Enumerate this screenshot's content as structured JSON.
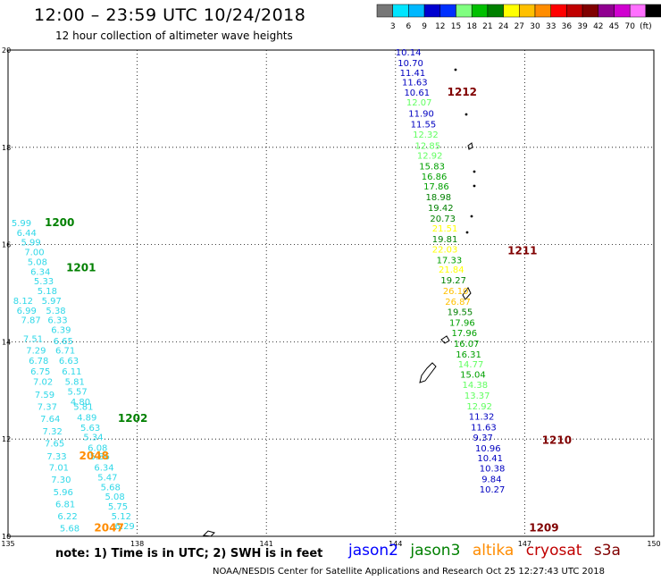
{
  "title": "12:00 – 23:59 UTC 10/24/2018",
  "subtitle": "12 hour collection of altimeter wave heights",
  "legend": {
    "colors": [
      "#777777",
      "#00e5ff",
      "#00b8ff",
      "#0000d0",
      "#0030ff",
      "#80ff80",
      "#00c000",
      "#008000",
      "#ffff00",
      "#ffc000",
      "#ff8c00",
      "#ff0000",
      "#c00000",
      "#800000",
      "#900090",
      "#d000d0",
      "#ff70ff",
      "#000000"
    ],
    "labels": [
      "3",
      "6",
      "9",
      "12",
      "15",
      "18",
      "21",
      "24",
      "27",
      "30",
      "33",
      "36",
      "39",
      "42",
      "45",
      "70",
      "(ft)"
    ]
  },
  "axes": {
    "lon_ticks": [
      "135",
      "138",
      "141",
      "144",
      "147",
      "150"
    ],
    "lat_ticks": [
      "20",
      "18",
      "16",
      "14",
      "12",
      "10"
    ]
  },
  "points": [
    {
      "v": "10.14",
      "lon": 144.0,
      "lat": 19.89,
      "c": "#0000c0"
    },
    {
      "v": "10.70",
      "lon": 144.05,
      "lat": 19.67,
      "c": "#0000c0"
    },
    {
      "v": "11.41",
      "lon": 144.1,
      "lat": 19.47,
      "c": "#0000c0"
    },
    {
      "v": "11.63",
      "lon": 144.15,
      "lat": 19.27,
      "c": "#0000c0"
    },
    {
      "v": "10.61",
      "lon": 144.2,
      "lat": 19.06,
      "c": "#0000c0"
    },
    {
      "v": "12.07",
      "lon": 144.25,
      "lat": 18.86,
      "c": "#60ff60"
    },
    {
      "v": "11.90",
      "lon": 144.3,
      "lat": 18.63,
      "c": "#0000c0"
    },
    {
      "v": "11.55",
      "lon": 144.35,
      "lat": 18.41,
      "c": "#0000c0"
    },
    {
      "v": "12.32",
      "lon": 144.4,
      "lat": 18.2,
      "c": "#60ff60"
    },
    {
      "v": "12.85",
      "lon": 144.45,
      "lat": 17.97,
      "c": "#60ff60"
    },
    {
      "v": "12.92",
      "lon": 144.5,
      "lat": 17.77,
      "c": "#60ff60"
    },
    {
      "v": "15.83",
      "lon": 144.55,
      "lat": 17.55,
      "c": "#00a000"
    },
    {
      "v": "16.86",
      "lon": 144.6,
      "lat": 17.33,
      "c": "#00a000"
    },
    {
      "v": "17.86",
      "lon": 144.65,
      "lat": 17.13,
      "c": "#00a000"
    },
    {
      "v": "18.98",
      "lon": 144.7,
      "lat": 16.91,
      "c": "#008000"
    },
    {
      "v": "19.42",
      "lon": 144.75,
      "lat": 16.69,
      "c": "#008000"
    },
    {
      "v": "20.73",
      "lon": 144.8,
      "lat": 16.47,
      "c": "#008000"
    },
    {
      "v": "21.51",
      "lon": 144.85,
      "lat": 16.27,
      "c": "#ffff00"
    },
    {
      "v": "19.81",
      "lon": 144.85,
      "lat": 16.05,
      "c": "#008000"
    },
    {
      "v": "22.03",
      "lon": 144.85,
      "lat": 15.84,
      "c": "#ffff00"
    },
    {
      "v": "17.33",
      "lon": 144.95,
      "lat": 15.62,
      "c": "#00a000"
    },
    {
      "v": "21.84",
      "lon": 145.0,
      "lat": 15.42,
      "c": "#ffff00"
    },
    {
      "v": "19.27",
      "lon": 145.05,
      "lat": 15.2,
      "c": "#008000"
    },
    {
      "v": "26.10",
      "lon": 145.1,
      "lat": 14.98,
      "c": "#ffc000"
    },
    {
      "v": "26.87",
      "lon": 145.15,
      "lat": 14.76,
      "c": "#ffc000"
    },
    {
      "v": "19.55",
      "lon": 145.2,
      "lat": 14.55,
      "c": "#008000"
    },
    {
      "v": "17.96",
      "lon": 145.25,
      "lat": 14.33,
      "c": "#00a000"
    },
    {
      "v": "17.96",
      "lon": 145.3,
      "lat": 14.12,
      "c": "#00a000"
    },
    {
      "v": "16.07",
      "lon": 145.35,
      "lat": 13.9,
      "c": "#00a000"
    },
    {
      "v": "16.31",
      "lon": 145.4,
      "lat": 13.68,
      "c": "#00a000"
    },
    {
      "v": "14.77",
      "lon": 145.45,
      "lat": 13.47,
      "c": "#60ff60"
    },
    {
      "v": "15.04",
      "lon": 145.5,
      "lat": 13.26,
      "c": "#00a000"
    },
    {
      "v": "14.38",
      "lon": 145.55,
      "lat": 13.05,
      "c": "#60ff60"
    },
    {
      "v": "13.37",
      "lon": 145.6,
      "lat": 12.83,
      "c": "#60ff60"
    },
    {
      "v": "12.92",
      "lon": 145.65,
      "lat": 12.61,
      "c": "#60ff60"
    },
    {
      "v": "11.32",
      "lon": 145.7,
      "lat": 12.4,
      "c": "#0000c0"
    },
    {
      "v": "11.63",
      "lon": 145.75,
      "lat": 12.18,
      "c": "#0000c0"
    },
    {
      "v": "9.37",
      "lon": 145.8,
      "lat": 11.97,
      "c": "#0000c0"
    },
    {
      "v": "10.96",
      "lon": 145.85,
      "lat": 11.75,
      "c": "#0000c0"
    },
    {
      "v": "10.41",
      "lon": 145.9,
      "lat": 11.54,
      "c": "#0000c0"
    },
    {
      "v": "10.38",
      "lon": 145.95,
      "lat": 11.33,
      "c": "#0000c0"
    },
    {
      "v": "9.84",
      "lon": 146.0,
      "lat": 11.11,
      "c": "#0000c0"
    },
    {
      "v": "10.27",
      "lon": 145.95,
      "lat": 10.9,
      "c": "#0000c0"
    },
    {
      "v": "5.99",
      "lon": 135.08,
      "lat": 16.38,
      "c": "#30d8e8"
    },
    {
      "v": "6.44",
      "lon": 135.2,
      "lat": 16.18,
      "c": "#30d8e8"
    },
    {
      "v": "5.99",
      "lon": 135.3,
      "lat": 15.98,
      "c": "#30d8e8"
    },
    {
      "v": "7.00",
      "lon": 135.38,
      "lat": 15.78,
      "c": "#30d8e8"
    },
    {
      "v": "5.08",
      "lon": 135.45,
      "lat": 15.58,
      "c": "#30d8e8"
    },
    {
      "v": "6.34",
      "lon": 135.52,
      "lat": 15.38,
      "c": "#30d8e8"
    },
    {
      "v": "5.33",
      "lon": 135.6,
      "lat": 15.18,
      "c": "#30d8e8"
    },
    {
      "v": "5.18",
      "lon": 135.68,
      "lat": 14.98,
      "c": "#30d8e8"
    },
    {
      "v": "8.12",
      "lon": 135.12,
      "lat": 14.78,
      "c": "#30d8e8"
    },
    {
      "v": "5.97",
      "lon": 135.78,
      "lat": 14.78,
      "c": "#30d8e8"
    },
    {
      "v": "6.99",
      "lon": 135.2,
      "lat": 14.58,
      "c": "#30d8e8"
    },
    {
      "v": "5.38",
      "lon": 135.88,
      "lat": 14.58,
      "c": "#30d8e8"
    },
    {
      "v": "7.87",
      "lon": 135.3,
      "lat": 14.38,
      "c": "#30d8e8"
    },
    {
      "v": "6.33",
      "lon": 135.92,
      "lat": 14.38,
      "c": "#30d8e8"
    },
    {
      "v": "6.39",
      "lon": 136.0,
      "lat": 14.18,
      "c": "#30d8e8"
    },
    {
      "v": "7.51",
      "lon": 135.35,
      "lat": 14.0,
      "c": "#30d8e8"
    },
    {
      "v": "6.65",
      "lon": 136.05,
      "lat": 13.95,
      "c": "#30d8e8"
    },
    {
      "v": "7.29",
      "lon": 135.42,
      "lat": 13.76,
      "c": "#30d8e8"
    },
    {
      "v": "6.71",
      "lon": 136.1,
      "lat": 13.76,
      "c": "#30d8e8"
    },
    {
      "v": "6.78",
      "lon": 135.48,
      "lat": 13.55,
      "c": "#30d8e8"
    },
    {
      "v": "6.63",
      "lon": 136.18,
      "lat": 13.55,
      "c": "#30d8e8"
    },
    {
      "v": "6.75",
      "lon": 135.52,
      "lat": 13.33,
      "c": "#30d8e8"
    },
    {
      "v": "6.11",
      "lon": 136.25,
      "lat": 13.33,
      "c": "#30d8e8"
    },
    {
      "v": "7.02",
      "lon": 135.58,
      "lat": 13.12,
      "c": "#30d8e8"
    },
    {
      "v": "5.81",
      "lon": 136.32,
      "lat": 13.12,
      "c": "#30d8e8"
    },
    {
      "v": "5.57",
      "lon": 136.38,
      "lat": 12.91,
      "c": "#30d8e8"
    },
    {
      "v": "7.59",
      "lon": 135.62,
      "lat": 12.85,
      "c": "#30d8e8"
    },
    {
      "v": "4.80",
      "lon": 136.45,
      "lat": 12.7,
      "c": "#30d8e8"
    },
    {
      "v": "7.37",
      "lon": 135.68,
      "lat": 12.6,
      "c": "#30d8e8"
    },
    {
      "v": "5.81",
      "lon": 136.52,
      "lat": 12.6,
      "c": "#30d8e8"
    },
    {
      "v": "4.89",
      "lon": 136.6,
      "lat": 12.38,
      "c": "#30d8e8"
    },
    {
      "v": "7.64",
      "lon": 135.75,
      "lat": 12.35,
      "c": "#30d8e8"
    },
    {
      "v": "5.63",
      "lon": 136.68,
      "lat": 12.17,
      "c": "#30d8e8"
    },
    {
      "v": "7.32",
      "lon": 135.8,
      "lat": 12.1,
      "c": "#30d8e8"
    },
    {
      "v": "5.34",
      "lon": 136.75,
      "lat": 11.98,
      "c": "#30d8e8"
    },
    {
      "v": "7.65",
      "lon": 135.85,
      "lat": 11.85,
      "c": "#30d8e8"
    },
    {
      "v": "6.08",
      "lon": 136.85,
      "lat": 11.76,
      "c": "#30d8e8"
    },
    {
      "v": "7.33",
      "lon": 135.9,
      "lat": 11.58,
      "c": "#30d8e8"
    },
    {
      "v": "5.86",
      "lon": 136.9,
      "lat": 11.58,
      "c": "#30d8e8"
    },
    {
      "v": "7.01",
      "lon": 135.95,
      "lat": 11.35,
      "c": "#30d8e8"
    },
    {
      "v": "6.34",
      "lon": 137.0,
      "lat": 11.35,
      "c": "#30d8e8"
    },
    {
      "v": "5.47",
      "lon": 137.08,
      "lat": 11.15,
      "c": "#30d8e8"
    },
    {
      "v": "7.30",
      "lon": 136.0,
      "lat": 11.1,
      "c": "#30d8e8"
    },
    {
      "v": "5.68",
      "lon": 137.15,
      "lat": 10.95,
      "c": "#30d8e8"
    },
    {
      "v": "5.96",
      "lon": 136.05,
      "lat": 10.85,
      "c": "#30d8e8"
    },
    {
      "v": "5.08",
      "lon": 137.25,
      "lat": 10.75,
      "c": "#30d8e8"
    },
    {
      "v": "6.81",
      "lon": 136.1,
      "lat": 10.6,
      "c": "#30d8e8"
    },
    {
      "v": "5.75",
      "lon": 137.32,
      "lat": 10.55,
      "c": "#30d8e8"
    },
    {
      "v": "6.22",
      "lon": 136.15,
      "lat": 10.35,
      "c": "#30d8e8"
    },
    {
      "v": "5.12",
      "lon": 137.4,
      "lat": 10.35,
      "c": "#30d8e8"
    },
    {
      "v": "6.29",
      "lon": 137.48,
      "lat": 10.15,
      "c": "#30d8e8"
    },
    {
      "v": "5.68",
      "lon": 136.2,
      "lat": 10.1,
      "c": "#30d8e8"
    }
  ],
  "pass_labels": [
    {
      "t": "1212",
      "lon": 145.2,
      "lat": 19.06,
      "c": "#800000"
    },
    {
      "t": "1211",
      "lon": 146.6,
      "lat": 15.8,
      "c": "#800000"
    },
    {
      "t": "1210",
      "lon": 147.4,
      "lat": 11.9,
      "c": "#800000"
    },
    {
      "t": "1209",
      "lon": 147.1,
      "lat": 10.1,
      "c": "#800000"
    },
    {
      "t": "1200",
      "lon": 135.85,
      "lat": 16.38,
      "c": "#008000"
    },
    {
      "t": "1201",
      "lon": 136.35,
      "lat": 15.45,
      "c": "#008000"
    },
    {
      "t": "1202",
      "lon": 137.55,
      "lat": 12.35,
      "c": "#008000"
    },
    {
      "t": "2048",
      "lon": 136.65,
      "lat": 11.58,
      "c": "#ff8c00"
    },
    {
      "t": "2047",
      "lon": 137.0,
      "lat": 10.1,
      "c": "#ff8c00"
    }
  ],
  "note": "note: 1) Time is in UTC; 2) SWH is in feet",
  "satellites": [
    {
      "name": "jason2",
      "color": "#0000ff"
    },
    {
      "name": "jason3",
      "color": "#008000"
    },
    {
      "name": "altika",
      "color": "#ff8c00"
    },
    {
      "name": "cryosat",
      "color": "#c00000"
    },
    {
      "name": "s3a",
      "color": "#800000"
    }
  ],
  "footer": "NOAA/NESDIS Center for Satellite Applications and Research   Oct 25 12:27:43 UTC 2018"
}
